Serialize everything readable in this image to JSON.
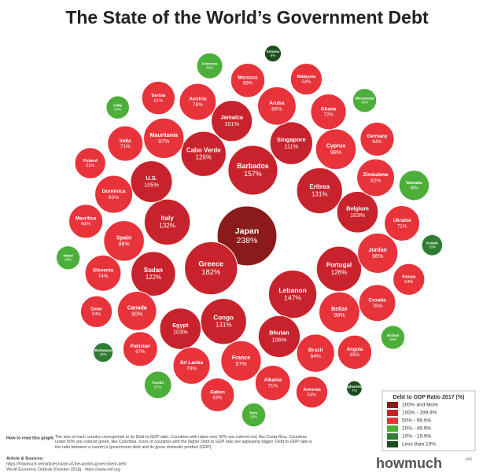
{
  "chart_data": {
    "type": "bubble",
    "title": "The State of the World’s Government Debt",
    "legend_title": "Debt to GDP Ratio 2017 (%)",
    "series": [
      {
        "name": "200% and More",
        "color": "#8b1a1a",
        "categories": [
          "Japan"
        ],
        "values": [
          238
        ],
        "value_labels": [
          "238%"
        ]
      },
      {
        "name": "100% - 199.9%",
        "color": "#c8232c",
        "categories": [
          "Greece",
          "Barbados",
          "Lebanon",
          "Italy",
          "Eritrea",
          "Congo",
          "Cabo Verde",
          "Portugal",
          "Sudan",
          "Singapore",
          "Bhutan",
          "U.S.",
          "Belgium",
          "Egypt",
          "Jamaica"
        ],
        "values": [
          182,
          157,
          147,
          132,
          131,
          131,
          126,
          126,
          122,
          111,
          106,
          105,
          103,
          103,
          101
        ],
        "value_labels": [
          "182%",
          "157%",
          "147%",
          "132%",
          "131%",
          "131%",
          "126%",
          "126%",
          "122%",
          "111%",
          "106%",
          "105%",
          "103%",
          "103%",
          "101%"
        ]
      },
      {
        "name": "50% - 99.9%",
        "color": "#e8333b",
        "categories": [
          "Belize",
          "Spain",
          "Cyprus",
          "France",
          "Mauritania",
          "Jordan",
          "Canada",
          "Aruba",
          "Brazil",
          "Dominica",
          "Zimbabwe",
          "Sri Lanka",
          "Austria",
          "Croatia",
          "Slovenia",
          "Ghana",
          "Albania",
          "India",
          "Ukraine",
          "Pakistan",
          "Morocco",
          "Angola",
          "Mauritius",
          "Germany",
          "Gabon",
          "Serbia",
          "Kenya",
          "Qatar",
          "Malaysia",
          "Armenia",
          "Poland"
        ],
        "values": [
          99,
          98,
          98,
          97,
          97,
          96,
          90,
          86,
          84,
          83,
          82,
          79,
          78,
          78,
          74,
          72,
          71,
          71,
          71,
          67,
          65,
          65,
          64,
          64,
          63,
          61,
          54,
          54,
          54,
          54,
          51
        ],
        "value_labels": [
          "99%",
          "98%",
          "98%",
          "97%",
          "97%",
          "96%",
          "90%",
          "86%",
          "84%",
          "83%",
          "82%",
          "79%",
          "78%",
          "78%",
          "74%",
          "72%",
          "71%",
          "71%",
          "71%",
          "67%",
          "65%",
          "65%",
          "64%",
          "64%",
          "63%",
          "61%",
          "54%",
          "54%",
          "54%",
          "54%",
          "51%"
        ]
      },
      {
        "name": "20% - 49.9%",
        "color": "#4caf3a",
        "categories": [
          "Vanuatu",
          "Tuvalu",
          "Comoros",
          "Kiribati",
          "Nepal",
          "Micronesia",
          "Peru",
          "Chile"
        ],
        "values": [
          48,
          37,
          32,
          26,
          26,
          26,
          26,
          24
        ],
        "value_labels": [
          "48%",
          "37%",
          "32%",
          "26%",
          "26%",
          "26%",
          "26%",
          "24%"
        ]
      },
      {
        "name": "10% - 19.9%",
        "color": "#2e7d32",
        "categories": [
          "Kuwait",
          "Botswana"
        ],
        "values": [
          18,
          15
        ],
        "value_labels": [
          "18%",
          "15%"
        ]
      },
      {
        "name": "Less than 10%",
        "color": "#1b4d1e",
        "categories": [
          "Estonia",
          "Afghanistan"
        ],
        "values": [
          9,
          7
        ],
        "value_labels": [
          "9%",
          "7%"
        ]
      }
    ]
  },
  "footer": {
    "how_to_heading": "How to read this graph:",
    "how_to_text": "The size of each country corresponds to its Debt to GDP ratio. Countries with ratios over 50% are colored red, like Costa Rica. Countries under 50% are colored green, like Colombia. Icons of countries with the higher Debt to GDP ratio are appearing bigger. Debt to GDP ratio is the ratio between a country's government debt and its gross domestic product (GDP).",
    "sources_heading": "Article & Sources:",
    "sources": [
      "https://howmuch.net/articles/state-of-the-worlds-government-debt",
      "World Economic Outlook (October 2018) - https://www.imf.org"
    ],
    "logo": "howmuch",
    "logo_suffix": ".net"
  }
}
